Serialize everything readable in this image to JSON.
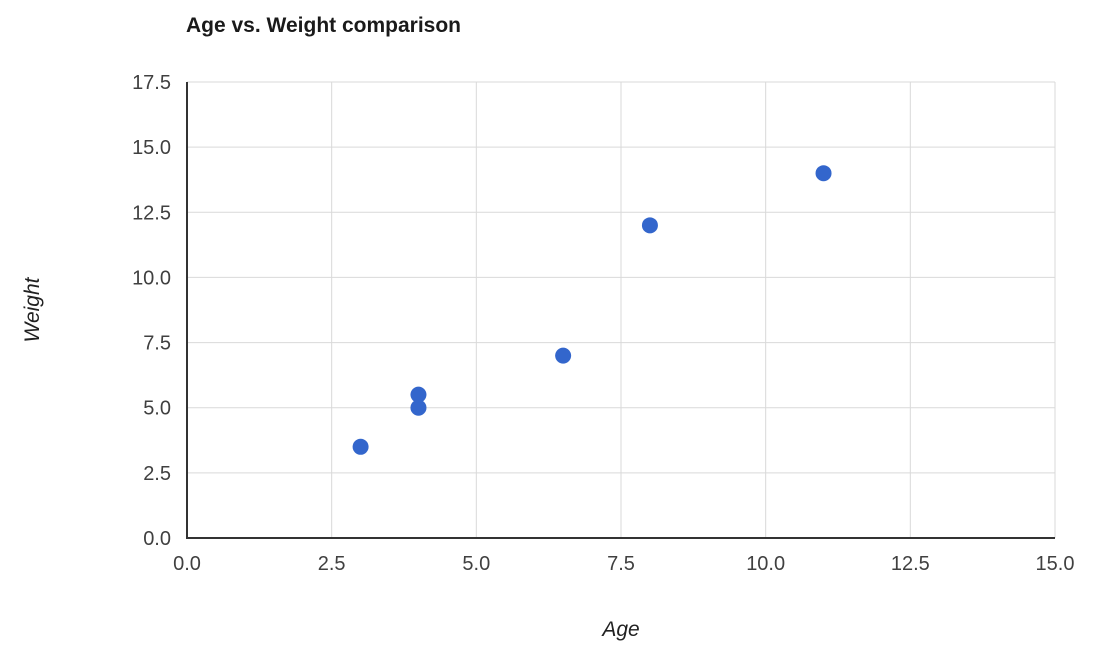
{
  "chart_data": {
    "type": "scatter",
    "title": "Age vs. Weight comparison",
    "xlabel": "Age",
    "ylabel": "Weight",
    "points": [
      {
        "x": 3,
        "y": 3.5
      },
      {
        "x": 4,
        "y": 5
      },
      {
        "x": 4,
        "y": 5.5
      },
      {
        "x": 6.5,
        "y": 7
      },
      {
        "x": 8,
        "y": 12
      },
      {
        "x": 11,
        "y": 14
      }
    ],
    "xlim": [
      0,
      15
    ],
    "ylim": [
      0,
      17.5
    ],
    "xticks": [
      0,
      2.5,
      5,
      7.5,
      10,
      12.5,
      15
    ],
    "xtick_labels": [
      "0.0",
      "2.5",
      "5.0",
      "7.5",
      "10.0",
      "12.5",
      "15.0"
    ],
    "yticks": [
      0,
      2.5,
      5,
      7.5,
      10,
      12.5,
      15,
      17.5
    ],
    "ytick_labels": [
      "0.0",
      "2.5",
      "5.0",
      "7.5",
      "10.0",
      "12.5",
      "15.0",
      "17.5"
    ],
    "grid": true,
    "legend": "none",
    "point_color": "#3366CC",
    "axis_color": "#333333",
    "grid_color": "#d9d9d9",
    "tick_label_color": "#404040",
    "marker_radius_px": 8
  }
}
